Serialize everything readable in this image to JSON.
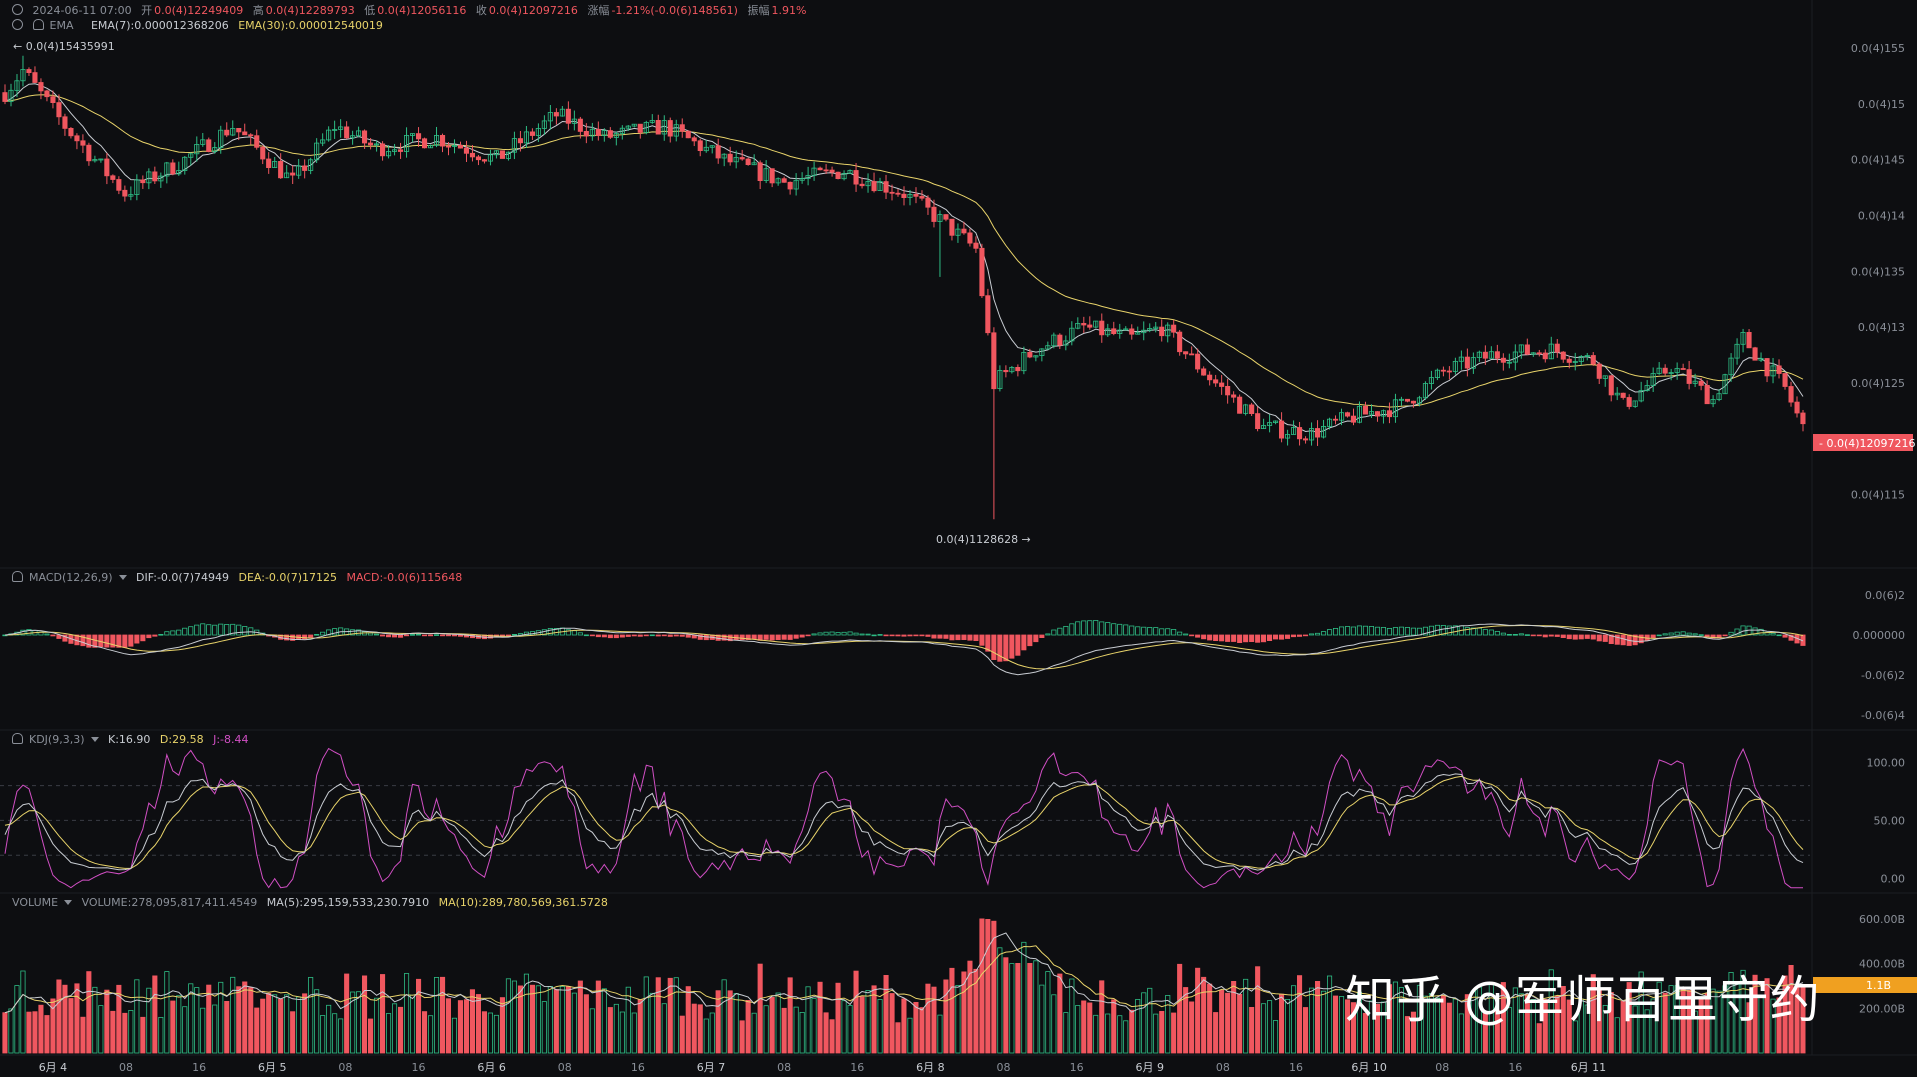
{
  "header": {
    "time": "2024-06-11 07:00",
    "open_label": "开",
    "open": "0.0(4)12249409",
    "high_label": "高",
    "high": "0.0(4)12289793",
    "low_label": "低",
    "low": "0.0(4)12056116",
    "close_label": "收",
    "close": "0.0(4)12097216",
    "change_label": "涨幅",
    "change": "-1.21%(-0.0(6)148561)",
    "amp_label": "振幅",
    "amp": "1.91%"
  },
  "ema": {
    "name": "EMA",
    "ema7": "EMA(7):0.000012368206",
    "ema30": "EMA(30):0.000012540019"
  },
  "macd": {
    "name": "MACD(12,26,9)",
    "dif": "DIF:-0.0(7)74949",
    "dea": "DEA:-0.0(7)17125",
    "macd": "MACD:-0.0(6)115648"
  },
  "kdj": {
    "name": "KDJ(9,3,3)",
    "k": "K:16.90",
    "d": "D:29.58",
    "j": "J:-8.44"
  },
  "volume": {
    "name": "VOLUME",
    "vol": "VOLUME:278,095,817,411.4549",
    "ma5": "MA(5):295,159,533,230.7910",
    "ma10": "MA(10):289,780,569,361.5728"
  },
  "annotations": {
    "high_mark": "← 0.0(4)15435991",
    "low_mark": "0.0(4)1128628 →"
  },
  "current_price_tag": "- 0.0(4)12097216",
  "volume_tag": "1.1B",
  "watermark": "知乎 @军师百里守约",
  "colors": {
    "up": "#2ebd85",
    "down": "#f0575f",
    "ema7": "#c8ccd2",
    "ema30": "#e8d36a",
    "j": "#d14fc4",
    "bg": "#0d0e11"
  },
  "chart_data": [
    {
      "type": "candlestick",
      "title": "",
      "x_labels": [
        "6月 4",
        "08",
        "16",
        "6月 5",
        "08",
        "16",
        "6月 6",
        "08",
        "16",
        "6月 7",
        "08",
        "16",
        "6月 8",
        "08",
        "16",
        "6月 9",
        "08",
        "16",
        "6月 10",
        "08",
        "16",
        "6月 11"
      ],
      "y_tick_labels": [
        "0.0(4)155",
        "0.0(4)15",
        "0.0(4)145",
        "0.0(4)14",
        "0.0(4)135",
        "0.0(4)13",
        "0.0(4)125",
        "0.0(4)12",
        "0.0(4)115"
      ],
      "y_tick_values": [
        15.5,
        15.0,
        14.5,
        14.0,
        13.5,
        13.0,
        12.5,
        12.0,
        11.5
      ],
      "ylim": [
        11.05,
        15.75
      ],
      "y_unit_note": "",
      "key_points": [
        {
          "i": 0,
          "p": 15.1
        },
        {
          "i": 3,
          "p": 15.3
        },
        {
          "i": 10,
          "p": 14.8
        },
        {
          "i": 20,
          "p": 14.2
        },
        {
          "i": 30,
          "p": 14.5
        },
        {
          "i": 38,
          "p": 14.8
        },
        {
          "i": 48,
          "p": 14.3
        },
        {
          "i": 55,
          "p": 14.8
        },
        {
          "i": 62,
          "p": 14.6
        },
        {
          "i": 72,
          "p": 14.7
        },
        {
          "i": 82,
          "p": 14.5
        },
        {
          "i": 92,
          "p": 14.9
        },
        {
          "i": 100,
          "p": 14.7
        },
        {
          "i": 110,
          "p": 14.8
        },
        {
          "i": 120,
          "p": 14.5
        },
        {
          "i": 130,
          "p": 14.3
        },
        {
          "i": 140,
          "p": 14.4
        },
        {
          "i": 150,
          "p": 14.2
        },
        {
          "i": 155,
          "p": 14.0
        },
        {
          "i": 162,
          "p": 13.7
        },
        {
          "i": 165,
          "p": 12.5
        },
        {
          "i": 172,
          "p": 12.8
        },
        {
          "i": 180,
          "p": 13.0
        },
        {
          "i": 188,
          "p": 12.9
        },
        {
          "i": 193,
          "p": 13.0
        },
        {
          "i": 200,
          "p": 12.6
        },
        {
          "i": 210,
          "p": 12.1
        },
        {
          "i": 218,
          "p": 12.05
        },
        {
          "i": 225,
          "p": 12.2
        },
        {
          "i": 233,
          "p": 12.3
        },
        {
          "i": 240,
          "p": 12.6
        },
        {
          "i": 248,
          "p": 12.75
        },
        {
          "i": 258,
          "p": 12.8
        },
        {
          "i": 265,
          "p": 12.7
        },
        {
          "i": 270,
          "p": 12.3
        },
        {
          "i": 278,
          "p": 12.65
        },
        {
          "i": 285,
          "p": 12.35
        },
        {
          "i": 290,
          "p": 12.9
        },
        {
          "i": 297,
          "p": 12.45
        },
        {
          "i": 300,
          "p": 12.1
        }
      ],
      "candle_count": 301
    },
    {
      "type": "bar",
      "title": "",
      "y_tick_labels": [
        "0.0(6)2",
        "0.000000",
        "-0.0(6)2",
        "-0.0(6)4"
      ],
      "y_tick_values": [
        2,
        0,
        -2,
        -4
      ],
      "ylim": [
        -4.5,
        2.5
      ]
    },
    {
      "type": "line",
      "title": "",
      "y_tick_labels": [
        "100.00",
        "50.00",
        "0.00"
      ],
      "y_tick_values": [
        100,
        50,
        0
      ],
      "ylim": [
        -10,
        115
      ]
    },
    {
      "type": "bar",
      "title": "",
      "y_tick_labels": [
        "600.00B",
        "400.00B",
        "200.00B"
      ],
      "y_tick_values": [
        600,
        400,
        200
      ],
      "ylim": [
        0,
        640
      ]
    }
  ]
}
